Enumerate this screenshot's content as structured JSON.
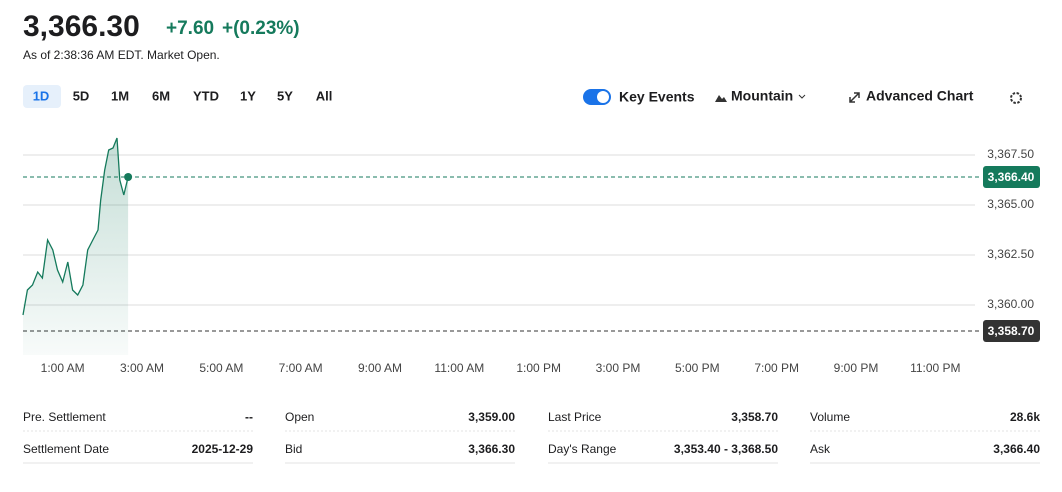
{
  "header": {
    "price": "3,366.30",
    "change": "+7.60",
    "change_percent": "+(0.23%)",
    "as_of": "As of 2:38:36 AM EDT. Market Open."
  },
  "tabs": [
    "1D",
    "5D",
    "1M",
    "6M",
    "YTD",
    "1Y",
    "5Y",
    "All"
  ],
  "controls": {
    "key_events": "Key Events",
    "chart_style": "Mountain",
    "advanced": "Advanced Chart"
  },
  "chart_data": {
    "type": "line",
    "color": "#157a5c",
    "x": [
      0,
      0.11,
      0.24,
      0.37,
      0.49,
      0.62,
      0.75,
      0.87,
      1.0,
      1.13,
      1.25,
      1.38,
      1.51,
      1.63,
      1.76,
      1.89,
      1.96,
      2.06,
      2.16,
      2.27,
      2.37,
      2.44,
      2.54,
      2.65
    ],
    "values": [
      3359.5,
      3360.75,
      3361.0,
      3361.65,
      3361.35,
      3363.25,
      3362.75,
      3361.75,
      3361.15,
      3362.15,
      3360.75,
      3360.5,
      3361.0,
      3362.75,
      3363.25,
      3363.75,
      3365.25,
      3366.75,
      3367.75,
      3367.85,
      3368.35,
      3366.25,
      3365.5,
      3366.4
    ],
    "xlim": [
      0,
      24
    ],
    "xticks": [
      {
        "value": 1,
        "label": "1:00 AM"
      },
      {
        "value": 3,
        "label": "3:00 AM"
      },
      {
        "value": 5,
        "label": "5:00 AM"
      },
      {
        "value": 7,
        "label": "7:00 AM"
      },
      {
        "value": 9,
        "label": "9:00 AM"
      },
      {
        "value": 11,
        "label": "11:00 AM"
      },
      {
        "value": 13,
        "label": "1:00 PM"
      },
      {
        "value": 15,
        "label": "3:00 PM"
      },
      {
        "value": 17,
        "label": "5:00 PM"
      },
      {
        "value": 19,
        "label": "7:00 PM"
      },
      {
        "value": 21,
        "label": "9:00 PM"
      },
      {
        "value": 23,
        "label": "11:00 PM"
      }
    ],
    "ylim": [
      3357.5,
      3369
    ],
    "yticks": [
      {
        "value": 3360,
        "label": "3,360.00"
      },
      {
        "value": 3362.5,
        "label": "3,362.50"
      },
      {
        "value": 3365,
        "label": "3,365.00"
      },
      {
        "value": 3367.5,
        "label": "3,367.50"
      }
    ],
    "grid": true,
    "reference_lines": [
      {
        "value": 3366.4,
        "label": "3,366.40",
        "color": "#157a5c"
      },
      {
        "value": 3358.7,
        "label": "3,358.70",
        "color": "#333333"
      }
    ]
  },
  "stats": [
    [
      [
        "Pre. Settlement",
        "--"
      ],
      [
        "Open",
        "3,359.00"
      ],
      [
        "Last Price",
        "3,358.70"
      ],
      [
        "Volume",
        "28.6k"
      ]
    ],
    [
      [
        "Settlement Date",
        "2025-12-29"
      ],
      [
        "Bid",
        "3,366.30"
      ],
      [
        "Day's Range",
        "3,353.40 - 3,368.50"
      ],
      [
        "Ask",
        "3,366.40"
      ]
    ]
  ]
}
